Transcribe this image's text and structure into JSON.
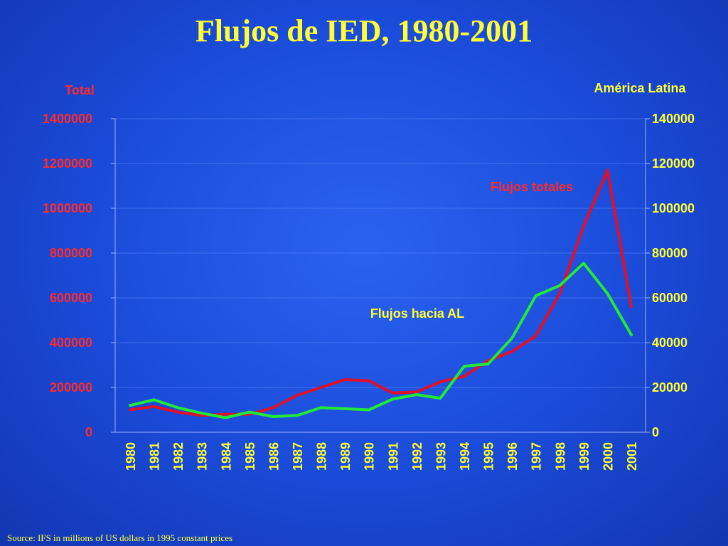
{
  "title": "Flujos de IED, 1980-2001",
  "footer": "Source: IFS in millions of US dollars in 1995 constant prices",
  "colors": {
    "background": "#1a4ad8",
    "title": "#ffff33",
    "total_series": "#e0102a",
    "al_series": "#22e83a",
    "left_axis_text": "#ff2a2a",
    "right_axis_text": "#ffff33"
  },
  "chart_data": {
    "type": "line",
    "ylabel_left": "Total",
    "ylabel_right": "América Latina",
    "categories": [
      "1980",
      "1981",
      "1982",
      "1983",
      "1984",
      "1985",
      "1986",
      "1987",
      "1988",
      "1989",
      "1990",
      "1991",
      "1992",
      "1993",
      "1994",
      "1995",
      "1996",
      "1997",
      "1998",
      "1999",
      "2000",
      "2001"
    ],
    "ylim_left": [
      0,
      1400000
    ],
    "ylim_right": [
      0,
      140000
    ],
    "yticks_left": [
      "0",
      "200000",
      "400000",
      "600000",
      "800000",
      "1000000",
      "1200000",
      "1400000"
    ],
    "yticks_right": [
      "0",
      "20000",
      "40000",
      "60000",
      "80000",
      "100000",
      "120000",
      "140000"
    ],
    "grid": "horizontal",
    "series": [
      {
        "name": "Flujos totales",
        "axis": "left",
        "values": [
          100000,
          115000,
          90000,
          75000,
          80000,
          80000,
          110000,
          165000,
          200000,
          235000,
          230000,
          175000,
          180000,
          225000,
          250000,
          320000,
          360000,
          430000,
          620000,
          920000,
          1170000,
          560000
        ]
      },
      {
        "name": "Flujos hacia AL",
        "axis": "right",
        "values": [
          12000,
          14500,
          11000,
          8500,
          6500,
          9000,
          7000,
          7500,
          11000,
          10500,
          10000,
          14800,
          16800,
          15200,
          29500,
          30500,
          42000,
          61000,
          65500,
          75500,
          62000,
          43500
        ]
      }
    ]
  }
}
